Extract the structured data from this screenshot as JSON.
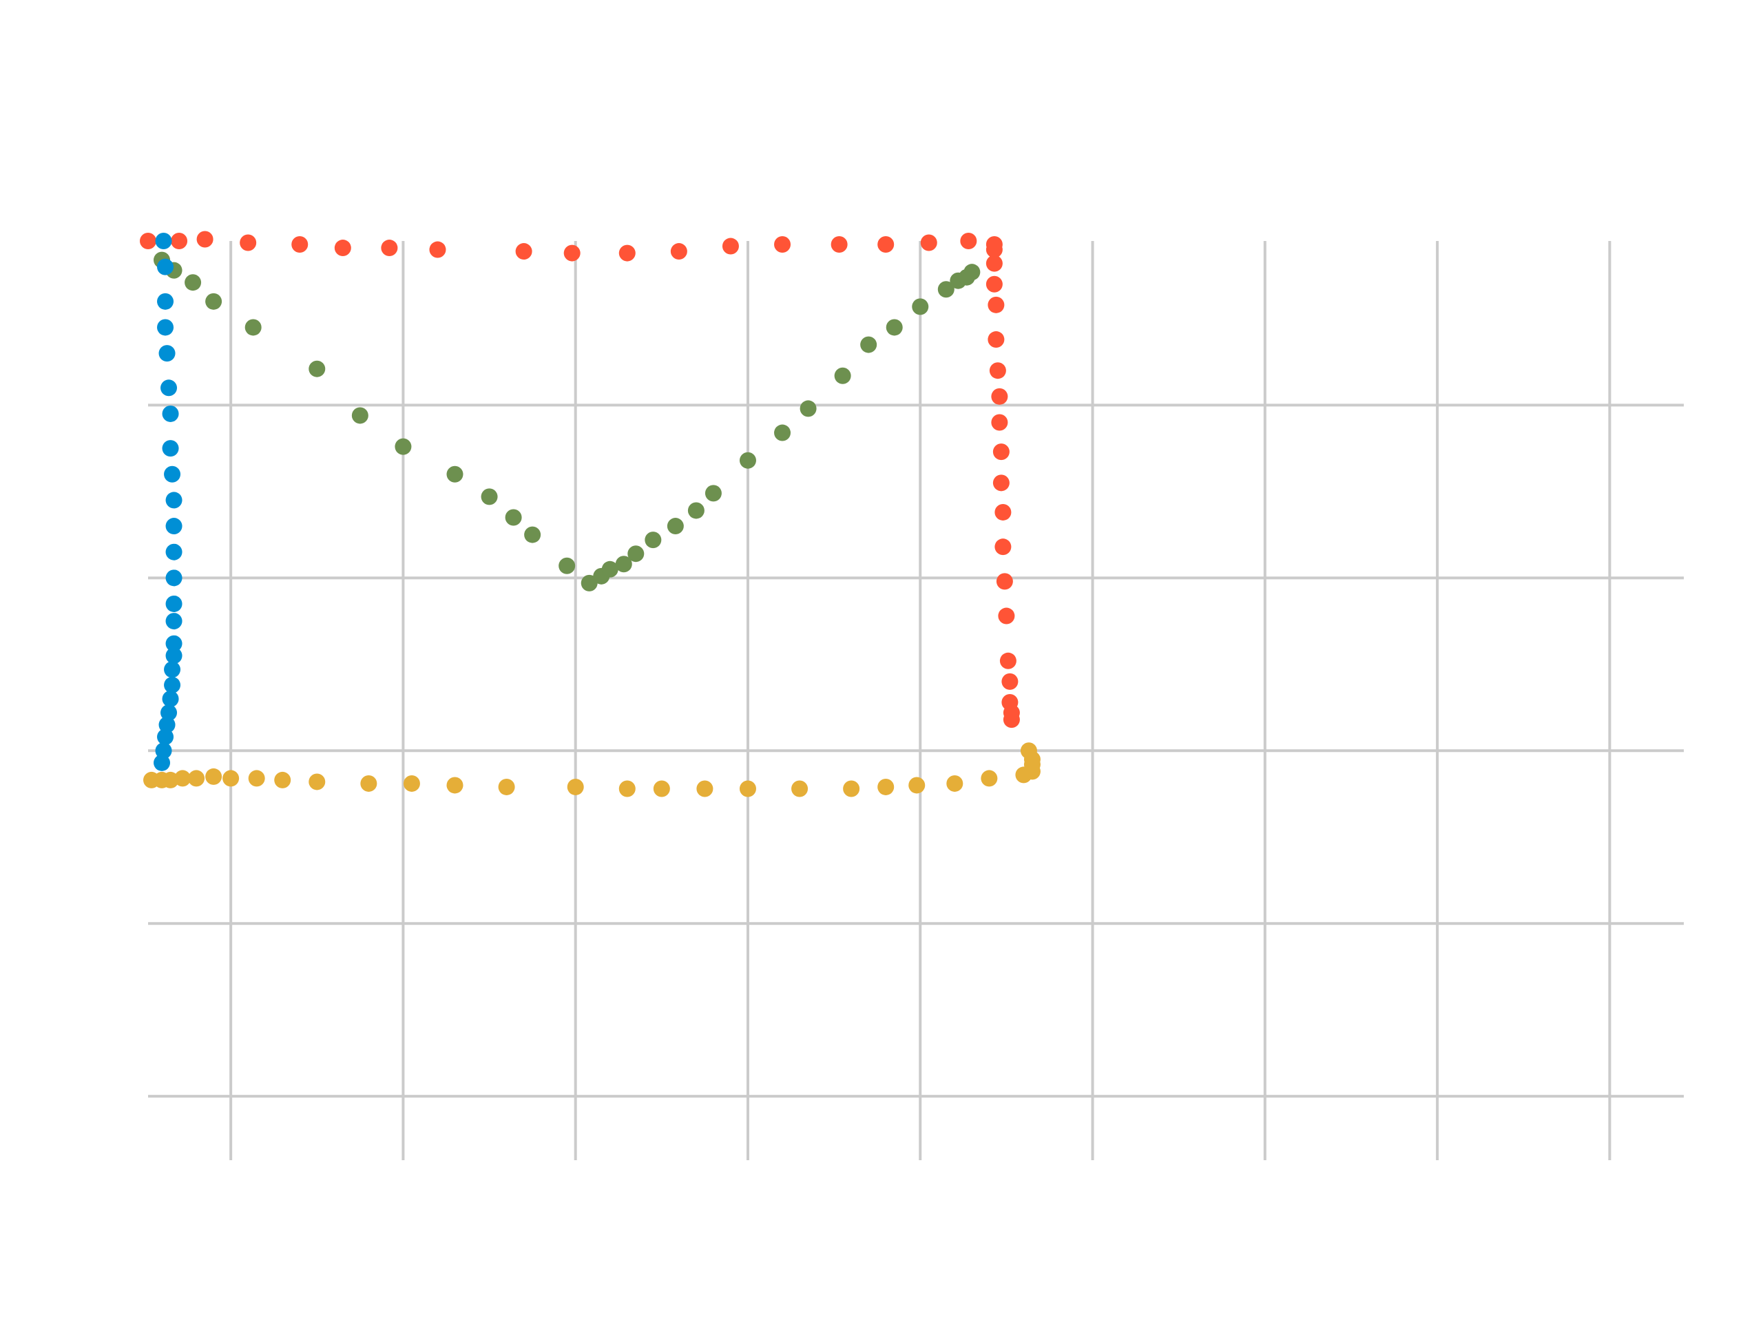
{
  "chart_data": {
    "type": "scatter",
    "title": "",
    "xlabel": "",
    "ylabel": "",
    "xlim": [
      -0.48,
      8.43
    ],
    "ylim": [
      -0.37,
      4.95
    ],
    "x_grid_ticks": [
      0,
      1,
      2,
      3,
      4,
      5,
      6,
      7,
      8
    ],
    "y_grid_ticks": [
      0,
      1,
      2,
      3,
      4
    ],
    "grid": true,
    "legend": "none",
    "series": [
      {
        "color": "#ff5436",
        "x": [
          -0.48,
          -0.3,
          -0.15,
          0.1,
          0.4,
          0.65,
          0.92,
          1.2,
          1.7,
          1.98,
          2.3,
          2.6,
          2.9,
          3.2,
          3.53,
          3.8,
          4.05,
          4.28,
          4.43,
          4.43,
          4.43,
          4.43,
          4.44,
          4.44,
          4.45,
          4.46,
          4.46,
          4.47,
          4.47,
          4.48,
          4.48,
          4.49,
          4.5,
          4.51,
          4.52,
          4.52,
          4.53,
          4.53
        ],
        "y": [
          4.95,
          4.95,
          4.96,
          4.94,
          4.93,
          4.91,
          4.91,
          4.9,
          4.89,
          4.88,
          4.88,
          4.89,
          4.92,
          4.93,
          4.93,
          4.93,
          4.94,
          4.95,
          4.93,
          4.9,
          4.82,
          4.7,
          4.58,
          4.38,
          4.2,
          4.05,
          3.9,
          3.73,
          3.55,
          3.38,
          3.18,
          2.98,
          2.78,
          2.52,
          2.4,
          2.28,
          2.22,
          2.18
        ]
      },
      {
        "color": "#e5ae38",
        "x": [
          -0.46,
          -0.4,
          -0.35,
          -0.28,
          -0.2,
          -0.1,
          0.0,
          0.15,
          0.3,
          0.5,
          0.8,
          1.05,
          1.3,
          1.6,
          2.0,
          2.3,
          2.5,
          2.75,
          3.0,
          3.3,
          3.6,
          3.8,
          3.98,
          4.2,
          4.4,
          4.6,
          4.65,
          4.65,
          4.65,
          4.63
        ],
        "y": [
          1.83,
          1.83,
          1.83,
          1.84,
          1.84,
          1.85,
          1.84,
          1.84,
          1.83,
          1.82,
          1.81,
          1.81,
          1.8,
          1.79,
          1.79,
          1.78,
          1.78,
          1.78,
          1.78,
          1.78,
          1.78,
          1.79,
          1.8,
          1.81,
          1.84,
          1.86,
          1.88,
          1.92,
          1.95,
          2.0
        ]
      },
      {
        "color": "#6d904f",
        "x": [
          -0.4,
          -0.33,
          -0.22,
          -0.1,
          0.13,
          0.5,
          0.75,
          1.0,
          1.3,
          1.5,
          1.64,
          1.75,
          1.95,
          2.08,
          2.15,
          2.2,
          2.28,
          2.35,
          2.45,
          2.58,
          2.7,
          2.8,
          3.0,
          3.2,
          3.35,
          3.55,
          3.7,
          3.85,
          4.0,
          4.15,
          4.22,
          4.27,
          4.3
        ],
        "y": [
          4.84,
          4.78,
          4.71,
          4.6,
          4.45,
          4.21,
          3.94,
          3.76,
          3.6,
          3.47,
          3.35,
          3.25,
          3.07,
          2.97,
          3.01,
          3.05,
          3.08,
          3.14,
          3.22,
          3.3,
          3.39,
          3.49,
          3.68,
          3.84,
          3.98,
          4.17,
          4.35,
          4.45,
          4.57,
          4.67,
          4.72,
          4.74,
          4.77
        ]
      },
      {
        "color": "#008fd5",
        "x": [
          -0.39,
          -0.38,
          -0.38,
          -0.38,
          -0.37,
          -0.36,
          -0.35,
          -0.35,
          -0.34,
          -0.33,
          -0.33,
          -0.33,
          -0.33,
          -0.33,
          -0.33,
          -0.33,
          -0.33,
          -0.34,
          -0.34,
          -0.35,
          -0.36,
          -0.37,
          -0.38,
          -0.39,
          -0.4
        ],
        "y": [
          4.95,
          4.8,
          4.6,
          4.45,
          4.3,
          4.1,
          3.95,
          3.75,
          3.6,
          3.45,
          3.3,
          3.15,
          3.0,
          2.85,
          2.75,
          2.62,
          2.55,
          2.47,
          2.38,
          2.3,
          2.22,
          2.15,
          2.08,
          2.0,
          1.93
        ]
      }
    ]
  }
}
